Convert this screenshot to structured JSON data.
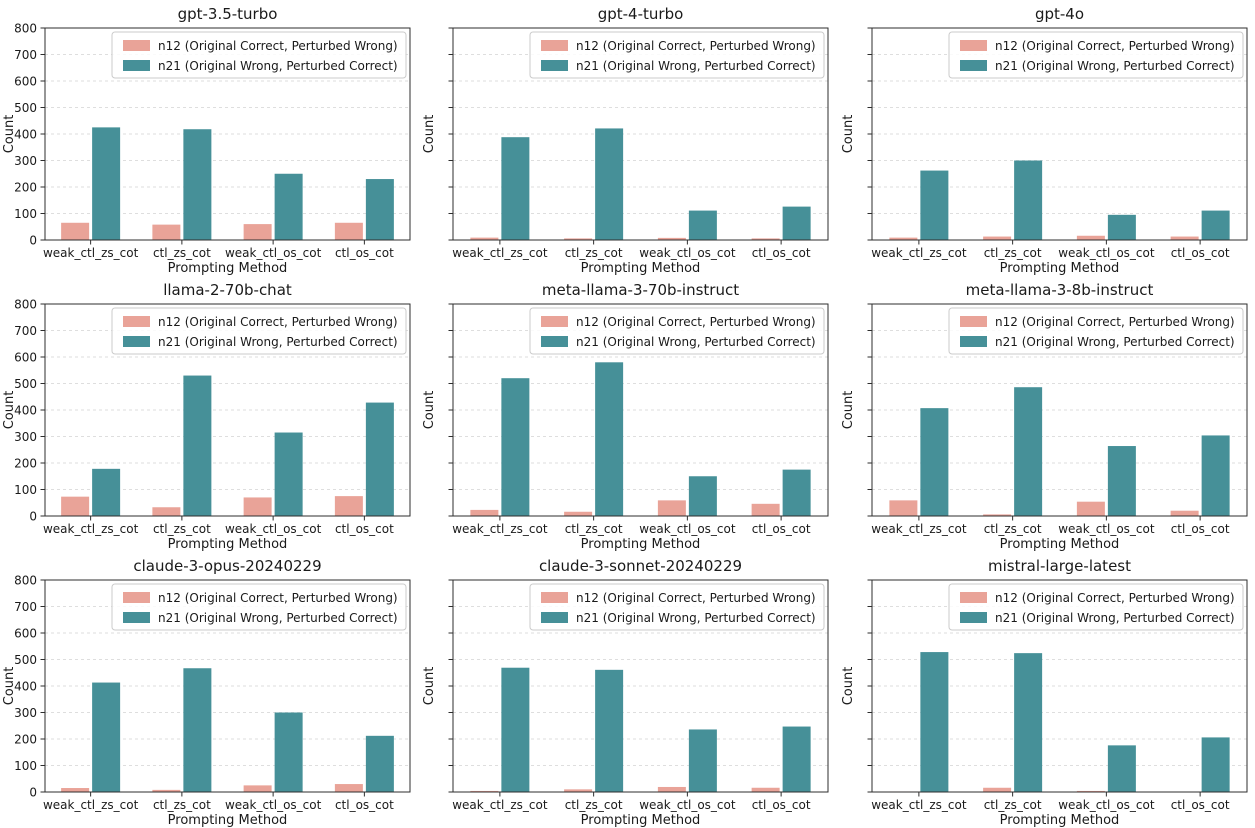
{
  "figure": {
    "ylabel": "Count",
    "xlabel": "Prompting Method",
    "ylim": [
      0,
      800
    ],
    "yticks": [
      0,
      100,
      200,
      300,
      400,
      500,
      600,
      700,
      800
    ],
    "grid": "horizontal-dashed",
    "legend_position": "upper right",
    "legend": [
      {
        "key": "n12",
        "label": "n12 (Original Correct, Perturbed Wrong)",
        "color": "#E9A398"
      },
      {
        "key": "n21",
        "label": "n21 (Original Wrong, Perturbed Correct)",
        "color": "#469098"
      }
    ],
    "colors": {
      "n12": "#E9A398",
      "n21": "#469098",
      "spine": "#2e2e2e",
      "gridline": "#dedede",
      "legend_border": "#cbcbcb"
    }
  },
  "chart_data": [
    {
      "type": "bar",
      "title": "gpt-3.5-turbo",
      "categories": [
        "weak_ctl_zs_cot",
        "ctl_zs_cot",
        "weak_ctl_os_cot",
        "ctl_os_cot"
      ],
      "series": [
        {
          "name": "n12",
          "values": [
            65,
            58,
            60,
            65
          ]
        },
        {
          "name": "n21",
          "values": [
            425,
            418,
            250,
            230
          ]
        }
      ]
    },
    {
      "type": "bar",
      "title": "gpt-4-turbo",
      "categories": [
        "weak_ctl_zs_cot",
        "ctl_zs_cot",
        "weak_ctl_os_cot",
        "ctl_os_cot"
      ],
      "series": [
        {
          "name": "n12",
          "values": [
            9,
            6,
            8,
            6
          ]
        },
        {
          "name": "n21",
          "values": [
            388,
            421,
            111,
            126
          ]
        }
      ]
    },
    {
      "type": "bar",
      "title": "gpt-4o",
      "categories": [
        "weak_ctl_zs_cot",
        "ctl_zs_cot",
        "weak_ctl_os_cot",
        "ctl_os_cot"
      ],
      "series": [
        {
          "name": "n12",
          "values": [
            9,
            13,
            16,
            13
          ]
        },
        {
          "name": "n21",
          "values": [
            262,
            300,
            95,
            111
          ]
        }
      ]
    },
    {
      "type": "bar",
      "title": "llama-2-70b-chat",
      "categories": [
        "weak_ctl_zs_cot",
        "ctl_zs_cot",
        "weak_ctl_os_cot",
        "ctl_os_cot"
      ],
      "series": [
        {
          "name": "n12",
          "values": [
            73,
            33,
            70,
            75
          ]
        },
        {
          "name": "n21",
          "values": [
            178,
            530,
            315,
            428
          ]
        }
      ]
    },
    {
      "type": "bar",
      "title": "meta-llama-3-70b-instruct",
      "categories": [
        "weak_ctl_zs_cot",
        "ctl_zs_cot",
        "weak_ctl_os_cot",
        "ctl_os_cot"
      ],
      "series": [
        {
          "name": "n12",
          "values": [
            23,
            16,
            59,
            46
          ]
        },
        {
          "name": "n21",
          "values": [
            520,
            580,
            150,
            175
          ]
        }
      ]
    },
    {
      "type": "bar",
      "title": "meta-llama-3-8b-instruct",
      "categories": [
        "weak_ctl_zs_cot",
        "ctl_zs_cot",
        "weak_ctl_os_cot",
        "ctl_os_cot"
      ],
      "series": [
        {
          "name": "n12",
          "values": [
            59,
            6,
            54,
            20
          ]
        },
        {
          "name": "n21",
          "values": [
            407,
            486,
            264,
            304
          ]
        }
      ]
    },
    {
      "type": "bar",
      "title": "claude-3-opus-20240229",
      "categories": [
        "weak_ctl_zs_cot",
        "ctl_zs_cot",
        "weak_ctl_os_cot",
        "ctl_os_cot"
      ],
      "series": [
        {
          "name": "n12",
          "values": [
            15,
            8,
            25,
            30
          ]
        },
        {
          "name": "n21",
          "values": [
            413,
            467,
            300,
            212
          ]
        }
      ]
    },
    {
      "type": "bar",
      "title": "claude-3-sonnet-20240229",
      "categories": [
        "weak_ctl_zs_cot",
        "ctl_zs_cot",
        "weak_ctl_os_cot",
        "ctl_os_cot"
      ],
      "series": [
        {
          "name": "n12",
          "values": [
            4,
            10,
            19,
            16
          ]
        },
        {
          "name": "n21",
          "values": [
            469,
            461,
            236,
            247
          ]
        }
      ]
    },
    {
      "type": "bar",
      "title": "mistral-large-latest",
      "categories": [
        "weak_ctl_zs_cot",
        "ctl_zs_cot",
        "weak_ctl_os_cot",
        "ctl_os_cot"
      ],
      "series": [
        {
          "name": "n12",
          "values": [
            2,
            16,
            4,
            1
          ]
        },
        {
          "name": "n21",
          "values": [
            528,
            524,
            176,
            206
          ]
        }
      ]
    }
  ]
}
